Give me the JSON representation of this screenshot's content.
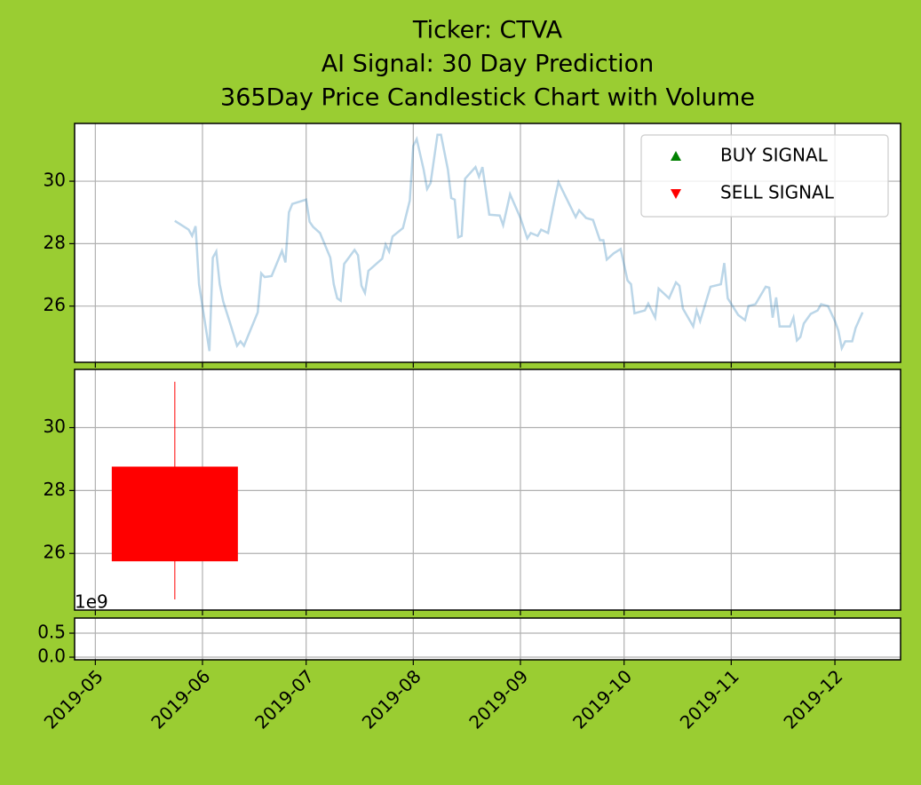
{
  "chart_data": [
    {
      "type": "line",
      "title": [
        "Ticker: CTVA",
        "AI Signal: 30 Day Prediction",
        "365Day Price Candlestick Chart with Volume"
      ],
      "ylim": [
        24.2,
        31.85
      ],
      "yticks": [
        26,
        28,
        30
      ],
      "grid": true,
      "legend_loc": "upper right",
      "legend": [
        {
          "name": "BUY SIGNAL",
          "color": "green",
          "marker": "^"
        },
        {
          "name": "SELL SIGNAL",
          "color": "red",
          "marker": "v"
        }
      ],
      "series": [
        {
          "color": "#1f77b4",
          "alpha": 0.3,
          "x": [
            "2019-05-24",
            "2019-05-28",
            "2019-05-29",
            "2019-05-30",
            "2019-05-31",
            "2019-06-03",
            "2019-06-04",
            "2019-06-05",
            "2019-06-06",
            "2019-06-07",
            "2019-06-09",
            "2019-06-11",
            "2019-06-12",
            "2019-06-13",
            "2019-06-17",
            "2019-06-18",
            "2019-06-19",
            "2019-06-21",
            "2019-06-24",
            "2019-06-25",
            "2019-06-26",
            "2019-06-27",
            "2019-07-01",
            "2019-07-02",
            "2019-07-03",
            "2019-07-05",
            "2019-07-08",
            "2019-07-09",
            "2019-07-10",
            "2019-07-11",
            "2019-07-12",
            "2019-07-15",
            "2019-07-16",
            "2019-07-17",
            "2019-07-18",
            "2019-07-19",
            "2019-07-23",
            "2019-07-24",
            "2019-07-25",
            "2019-07-26",
            "2019-07-29",
            "2019-07-31",
            "2019-08-01",
            "2019-08-02",
            "2019-08-04",
            "2019-08-05",
            "2019-08-06",
            "2019-08-08",
            "2019-08-09",
            "2019-08-11",
            "2019-08-12",
            "2019-08-13",
            "2019-08-14",
            "2019-08-15",
            "2019-08-16",
            "2019-08-19",
            "2019-08-20",
            "2019-08-21",
            "2019-08-23",
            "2019-08-26",
            "2019-08-27",
            "2019-08-29",
            "2019-09-01",
            "2019-09-03",
            "2019-09-04",
            "2019-09-06",
            "2019-09-07",
            "2019-09-09",
            "2019-09-11",
            "2019-09-12",
            "2019-09-15",
            "2019-09-17",
            "2019-09-18",
            "2019-09-20",
            "2019-09-22",
            "2019-09-24",
            "2019-09-25",
            "2019-09-26",
            "2019-09-28",
            "2019-09-30",
            "2019-10-02",
            "2019-10-03",
            "2019-10-04",
            "2019-10-07",
            "2019-10-08",
            "2019-10-10",
            "2019-10-11",
            "2019-10-14",
            "2019-10-16",
            "2019-10-17",
            "2019-10-18",
            "2019-10-21",
            "2019-10-22",
            "2019-10-23",
            "2019-10-26",
            "2019-10-29",
            "2019-10-30",
            "2019-10-31",
            "2019-11-03",
            "2019-11-05",
            "2019-11-06",
            "2019-11-08",
            "2019-11-11",
            "2019-11-12",
            "2019-11-13",
            "2019-11-14",
            "2019-11-15",
            "2019-11-18",
            "2019-11-19",
            "2019-11-20",
            "2019-11-21",
            "2019-11-22",
            "2019-11-24",
            "2019-11-26",
            "2019-11-27",
            "2019-11-29",
            "2019-12-01",
            "2019-12-02",
            "2019-12-03",
            "2019-12-04",
            "2019-12-06",
            "2019-12-07",
            "2019-12-09"
          ],
          "values": [
            28.73,
            28.45,
            28.25,
            28.56,
            26.7,
            24.56,
            27.55,
            27.75,
            26.7,
            26.15,
            25.45,
            24.73,
            24.87,
            24.73,
            25.8,
            27.05,
            26.93,
            26.96,
            27.77,
            27.4,
            29.0,
            29.27,
            29.41,
            28.7,
            28.54,
            28.34,
            27.55,
            26.7,
            26.25,
            26.17,
            27.35,
            27.8,
            27.63,
            26.65,
            26.42,
            27.13,
            27.52,
            27.97,
            27.75,
            28.23,
            28.5,
            29.38,
            31.13,
            31.35,
            30.37,
            29.75,
            29.94,
            31.49,
            31.49,
            30.37,
            29.46,
            29.41,
            28.2,
            28.25,
            30.08,
            30.45,
            30.14,
            30.45,
            28.93,
            28.9,
            28.59,
            29.58,
            28.82,
            28.17,
            28.34,
            28.25,
            28.45,
            28.34,
            29.46,
            29.97,
            29.3,
            28.85,
            29.07,
            28.82,
            28.76,
            28.11,
            28.11,
            27.49,
            27.69,
            27.83,
            26.82,
            26.7,
            25.77,
            25.86,
            26.08,
            25.63,
            26.56,
            26.25,
            26.76,
            26.65,
            25.92,
            25.35,
            25.86,
            25.52,
            26.62,
            26.7,
            27.38,
            26.25,
            25.72,
            25.55,
            26.0,
            26.06,
            26.62,
            26.59,
            25.63,
            26.28,
            25.35,
            25.35,
            25.63,
            24.9,
            25.01,
            25.44,
            25.75,
            25.86,
            26.06,
            26.0,
            25.52,
            25.21,
            24.65,
            24.87,
            24.87,
            25.3,
            25.8
          ]
        }
      ]
    },
    {
      "type": "candlestick",
      "ylim": [
        24.2,
        31.85
      ],
      "yticks": [
        26,
        28,
        30
      ],
      "grid": true,
      "color": "red",
      "candles": [
        {
          "x": "2019-05-24",
          "open": 28.76,
          "high": 31.46,
          "low": 24.54,
          "close": 25.75
        }
      ]
    },
    {
      "type": "bar",
      "ylim": [
        -0.055,
        0.815
      ],
      "yticks": [
        {
          "value": 0,
          "label": "0.0"
        },
        {
          "value": 0.5,
          "label": "0.5"
        }
      ],
      "grid": true,
      "offset_label": "1e9",
      "xlim": [
        "2019-04-25",
        "2019-12-20"
      ],
      "xticks": [
        {
          "value": "2019-05-01",
          "label": "2019-05"
        },
        {
          "value": "2019-06-01",
          "label": "2019-06"
        },
        {
          "value": "2019-07-01",
          "label": "2019-07"
        },
        {
          "value": "2019-08-01",
          "label": "2019-08"
        },
        {
          "value": "2019-09-01",
          "label": "2019-09"
        },
        {
          "value": "2019-10-01",
          "label": "2019-10"
        },
        {
          "value": "2019-11-01",
          "label": "2019-11"
        },
        {
          "value": "2019-12-01",
          "label": "2019-12"
        }
      ]
    }
  ]
}
